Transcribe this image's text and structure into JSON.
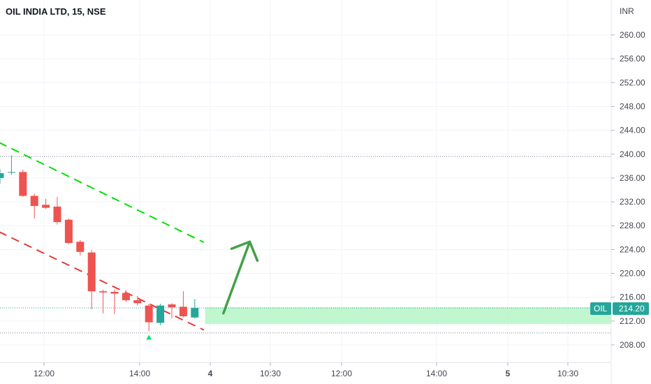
{
  "header": {
    "title": "OIL INDIA LTD, 15, NSE"
  },
  "axis": {
    "currency": "INR"
  },
  "price_tag": {
    "symbol": "OIL",
    "value": "214.20"
  },
  "colors": {
    "up": "#26a69a",
    "down": "#ef5350",
    "zone": "#b9f6ca",
    "zone_edge": "#26a69a",
    "green_trend": "#00e000",
    "red_trend": "#e53935",
    "arrow": "#43a047",
    "tag": "#26a69a"
  },
  "chart_data": {
    "type": "candlestick",
    "y_axis": {
      "ylim": [
        204,
        264
      ],
      "ticks": [
        "260.00",
        "256.00",
        "252.00",
        "248.00",
        "244.00",
        "240.00",
        "236.00",
        "232.00",
        "228.00",
        "224.00",
        "220.00",
        "216.00",
        "212.00",
        "208.00"
      ]
    },
    "x_axis": {
      "ticks": [
        {
          "label": "12:00",
          "bold": false
        },
        {
          "label": "14:00",
          "bold": false
        },
        {
          "label": "4",
          "bold": true
        },
        {
          "label": "10:30",
          "bold": false
        },
        {
          "label": "12:00",
          "bold": false
        },
        {
          "label": "14:00",
          "bold": false
        },
        {
          "label": "5",
          "bold": true
        },
        {
          "label": "10:30",
          "bold": false
        }
      ]
    },
    "candles": [
      {
        "o": 236.0,
        "h": 237.5,
        "l": 235.0,
        "c": 236.8
      },
      {
        "o": 237.0,
        "h": 239.8,
        "l": 236.5,
        "c": 237.0
      },
      {
        "o": 237.0,
        "h": 237.4,
        "l": 232.8,
        "c": 233.0
      },
      {
        "o": 233.0,
        "h": 233.4,
        "l": 229.2,
        "c": 231.3
      },
      {
        "o": 231.5,
        "h": 232.5,
        "l": 230.8,
        "c": 231.0
      },
      {
        "o": 231.2,
        "h": 232.8,
        "l": 228.2,
        "c": 228.6
      },
      {
        "o": 229.0,
        "h": 229.2,
        "l": 224.9,
        "c": 225.1
      },
      {
        "o": 225.3,
        "h": 225.6,
        "l": 223.0,
        "c": 223.6
      },
      {
        "o": 223.5,
        "h": 223.9,
        "l": 214.0,
        "c": 217.0
      },
      {
        "o": 217.0,
        "h": 217.3,
        "l": 213.3,
        "c": 216.8
      },
      {
        "o": 216.9,
        "h": 217.3,
        "l": 213.2,
        "c": 216.6
      },
      {
        "o": 216.7,
        "h": 217.2,
        "l": 215.2,
        "c": 215.5
      },
      {
        "o": 215.5,
        "h": 216.2,
        "l": 214.6,
        "c": 215.0
      },
      {
        "o": 214.6,
        "h": 214.9,
        "l": 210.3,
        "c": 211.8
      },
      {
        "o": 211.7,
        "h": 214.9,
        "l": 211.3,
        "c": 214.6
      },
      {
        "o": 214.8,
        "h": 215.0,
        "l": 212.5,
        "c": 214.3
      },
      {
        "o": 214.4,
        "h": 217.0,
        "l": 212.6,
        "c": 212.8
      },
      {
        "o": 212.6,
        "h": 215.7,
        "l": 212.4,
        "c": 214.2
      }
    ],
    "horizontal_levels": [
      239.6,
      214.2,
      210.0
    ],
    "support_zone": [
      211.5,
      214.3
    ],
    "trendlines": [
      {
        "name": "upper",
        "from": {
          "bar": -1.2,
          "price": 243.0
        },
        "to": {
          "bar": 17.8,
          "price": 225.2
        }
      },
      {
        "name": "lower",
        "from": {
          "bar": -1.2,
          "price": 228.0
        },
        "to": {
          "bar": 17.8,
          "price": 210.5
        }
      }
    ],
    "signal_marker": {
      "bar": 13,
      "price": 209.7
    },
    "arrow": {
      "from": {
        "bar": 19.5,
        "price": 213.3
      },
      "to": {
        "bar": 21.8,
        "price": 225.3
      }
    }
  }
}
